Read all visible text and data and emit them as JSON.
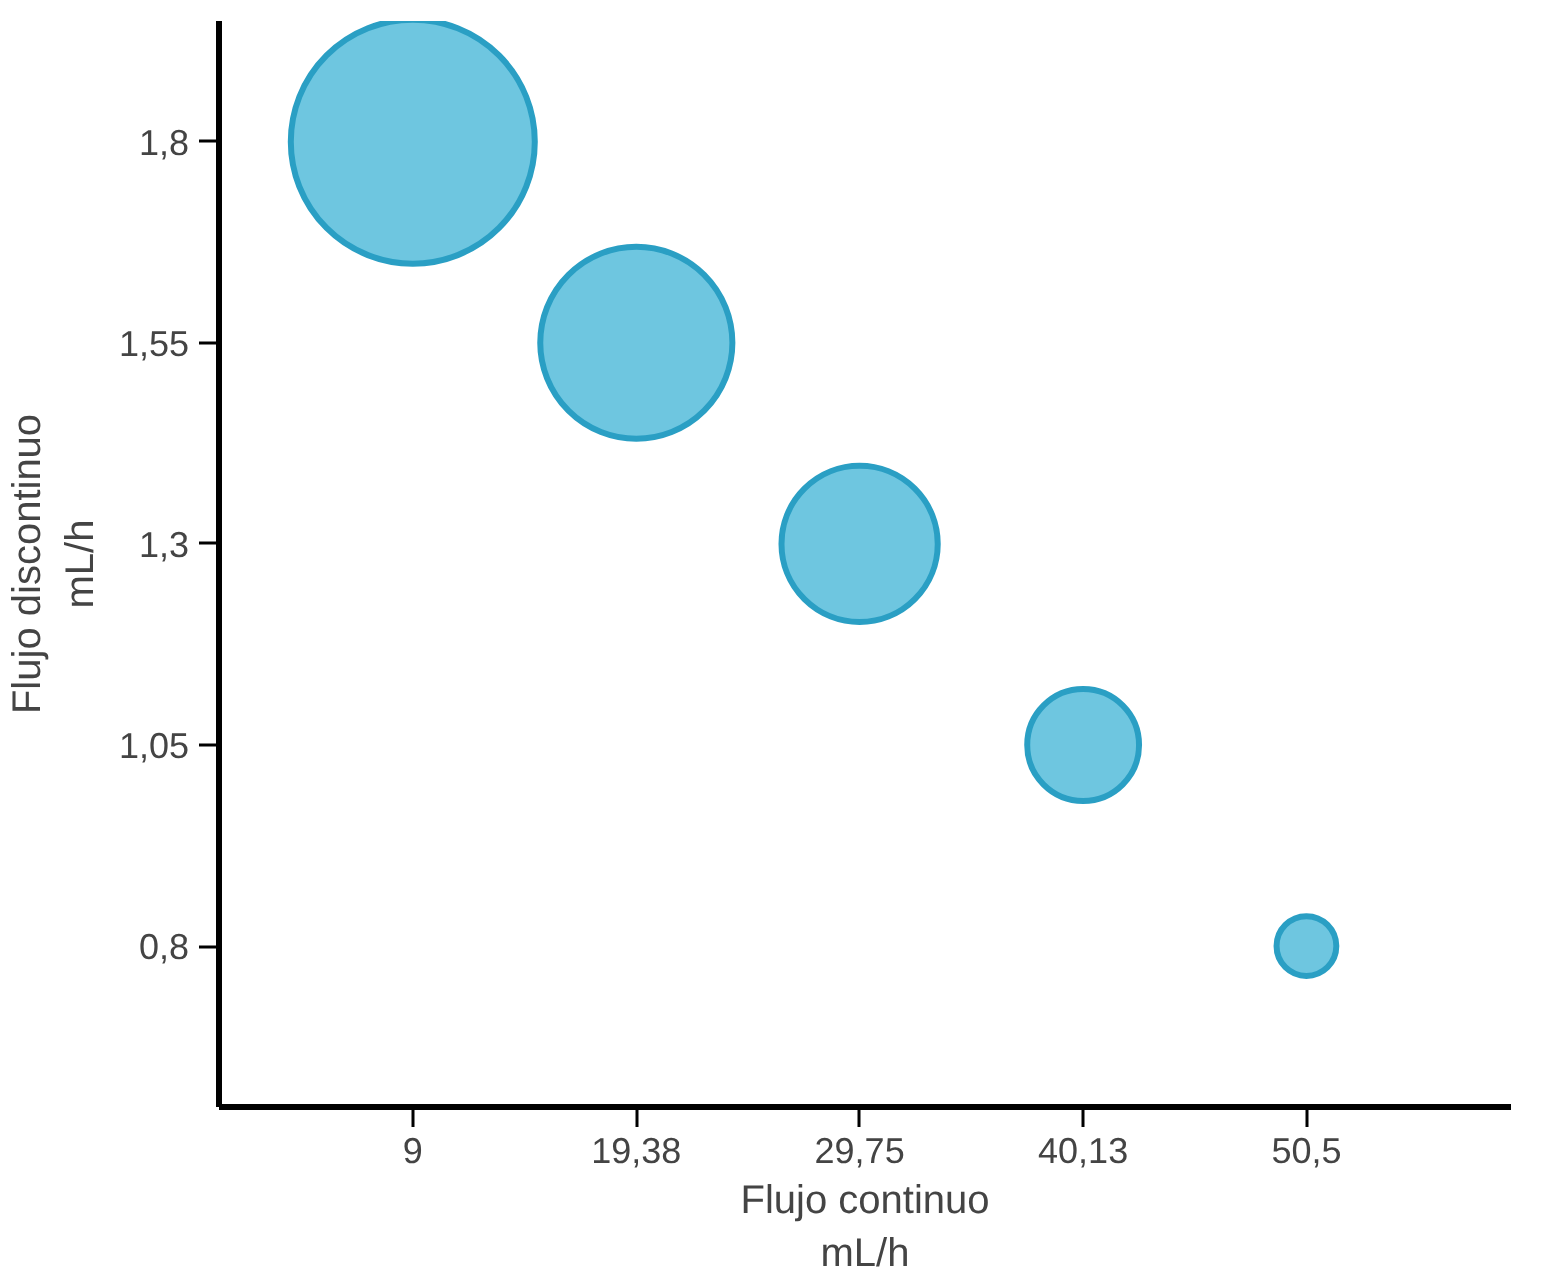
{
  "chart_data": {
    "type": "bubble",
    "xlabel": "Flujo continuo\nmL/h",
    "ylabel": "Flujo discontinuo\nmL/h",
    "x": [
      9,
      19.38,
      29.75,
      40.13,
      50.5
    ],
    "series": [
      {
        "color": "#6ec6e0",
        "values": [
          1.8,
          1.55,
          1.3,
          1.05,
          0.8
        ],
        "sizes": [
          1,
          0.62,
          0.41,
          0.21,
          0.06
        ]
      }
    ],
    "xlim": [
      0,
      60
    ],
    "ylim": [
      0.6,
      1.95
    ],
    "xticks": [
      9,
      {
        "value": 19.38,
        "label": "19,38"
      },
      {
        "value": 29.75,
        "label": "29,75"
      },
      {
        "value": 40.13,
        "label": "40,13"
      },
      {
        "value": 50.5,
        "label": "50,5"
      }
    ],
    "yticks": [
      {
        "value": 0.8,
        "label": "0,8"
      },
      {
        "value": 1.05,
        "label": "1,05"
      },
      {
        "value": 1.3,
        "label": "1,3"
      },
      {
        "value": 1.55,
        "label": "1,55"
      },
      {
        "value": 1.8,
        "label": "1,8"
      }
    ],
    "grid": false
  }
}
